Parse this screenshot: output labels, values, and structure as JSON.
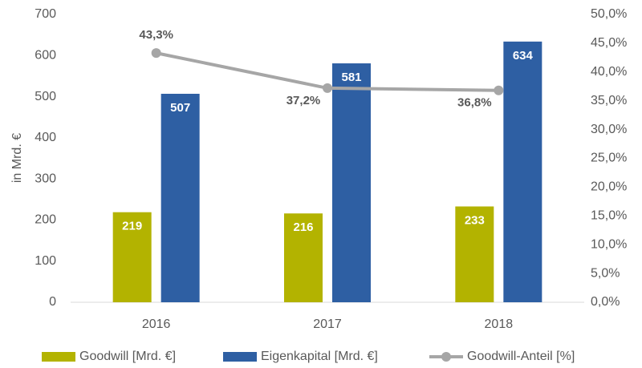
{
  "chart_data": {
    "type": "bar",
    "y_label": "in Mrd. €",
    "categories": [
      "2016",
      "2017",
      "2018"
    ],
    "series": [
      {
        "name": "Goodwill [Mrd. €]",
        "color": "#b3b300",
        "values": [
          219,
          216,
          233
        ]
      },
      {
        "name": "Eigenkapital [Mrd. €]",
        "color": "#2e5fa3",
        "values": [
          507,
          581,
          634
        ]
      },
      {
        "name": "Goodwill-Anteil [%]",
        "color": "#a6a6a6",
        "type": "line",
        "axis": "y2",
        "values": [
          43.3,
          37.2,
          36.8
        ],
        "value_labels": [
          "43,3%",
          "37,2%",
          "36,8%"
        ]
      }
    ],
    "ylim": [
      0,
      700
    ],
    "yticks": [
      0,
      100,
      200,
      300,
      400,
      500,
      600,
      700
    ],
    "y2lim": [
      0,
      50
    ],
    "y2ticks": [
      {
        "value": 0,
        "label": "0,0%"
      },
      {
        "value": 5,
        "label": "5,0%"
      },
      {
        "value": 10,
        "label": "10,0%"
      },
      {
        "value": 15,
        "label": "15,0%"
      },
      {
        "value": 20,
        "label": "20,0%"
      },
      {
        "value": 25,
        "label": "25,0%"
      },
      {
        "value": 30,
        "label": "30,0%"
      },
      {
        "value": 35,
        "label": "35,0%"
      },
      {
        "value": 40,
        "label": "40,0%"
      },
      {
        "value": 45,
        "label": "45,0%"
      },
      {
        "value": 50,
        "label": "50,0%"
      }
    ],
    "grid": false,
    "legend": "bottom"
  }
}
